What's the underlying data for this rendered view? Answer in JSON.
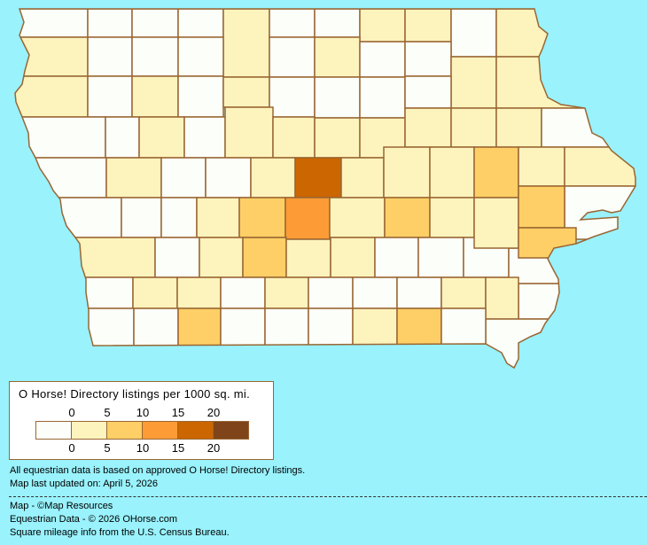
{
  "map": {
    "region": "Iowa",
    "colors": {
      "background": "#99f2fc",
      "border": "#996633",
      "levels": [
        "#fcfef9",
        "#fdf3bd",
        "#fdcf66",
        "#fd9c36",
        "#cc6600",
        "#7f4419"
      ]
    },
    "county_levels": [
      0,
      0,
      0,
      0,
      1,
      0,
      0,
      1,
      1,
      0,
      1,
      1,
      0,
      0,
      0,
      0,
      1,
      0,
      0,
      1,
      1,
      1,
      0,
      1,
      0,
      1,
      0,
      0,
      0,
      0,
      0,
      0,
      1,
      0,
      1,
      1,
      1,
      1,
      1,
      1,
      1,
      0,
      0,
      1,
      0,
      0,
      1,
      4,
      1,
      1,
      1,
      2,
      1,
      1,
      0,
      0,
      0,
      0,
      1,
      2,
      3,
      1,
      2,
      1,
      1,
      0,
      1,
      2,
      1,
      1,
      0,
      0,
      0,
      0,
      0,
      1,
      2,
      2,
      0,
      1,
      1,
      0,
      1,
      0,
      0,
      0,
      1,
      1,
      0,
      0,
      0,
      2,
      0,
      0,
      0,
      1,
      2,
      0
    ]
  },
  "legend": {
    "title": "O Horse! Directory listings per 1000 sq. mi.",
    "ticks_top": [
      "0",
      "5",
      "10",
      "15",
      "20"
    ],
    "ticks_bottom": [
      "0",
      "5",
      "10",
      "15",
      "20"
    ]
  },
  "notes": {
    "data_basis": "All equestrian data is based on approved O Horse! Directory listings.",
    "updated": "Map last updated on: April 5, 2026"
  },
  "credits": {
    "map": "Map - ©Map Resources",
    "data": "Equestrian Data - © 2026 OHorse.com",
    "census": "Square mileage info from the U.S. Census Bureau."
  }
}
